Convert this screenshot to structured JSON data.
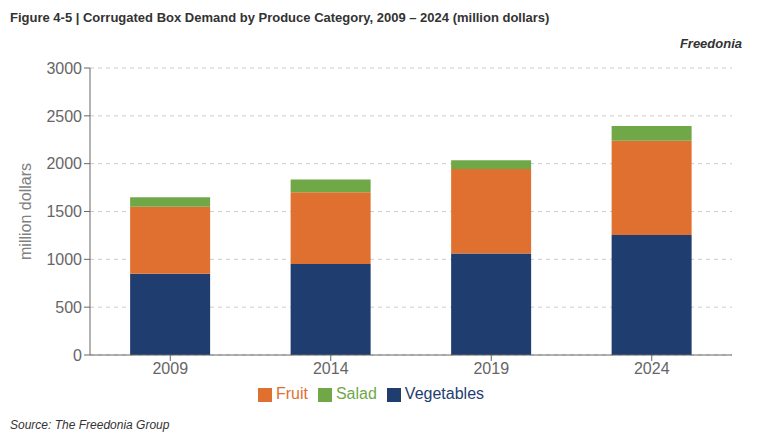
{
  "chart_data": {
    "type": "bar",
    "stacked": true,
    "title": "Figure 4-5  |  Corrugated Box Demand by Produce Category, 2009 – 2024 (million dollars)",
    "ylabel": "million dollars",
    "categories": [
      "2009",
      "2014",
      "2019",
      "2024"
    ],
    "series": [
      {
        "name": "Vegetables",
        "color": "#1f3d6e",
        "values": [
          850,
          950,
          1060,
          1255
        ]
      },
      {
        "name": "Fruit",
        "color": "#e07030",
        "values": [
          700,
          750,
          885,
          985
        ]
      },
      {
        "name": "Salad",
        "color": "#70a848",
        "values": [
          100,
          135,
          90,
          155
        ]
      }
    ],
    "ylim": [
      0,
      3000
    ],
    "yticks": [
      0,
      500,
      1000,
      1500,
      2000,
      2500,
      3000
    ],
    "grid": true,
    "legend": "bottom",
    "annotations": [
      "Freedonia",
      "Source: The Freedonia Group"
    ]
  }
}
